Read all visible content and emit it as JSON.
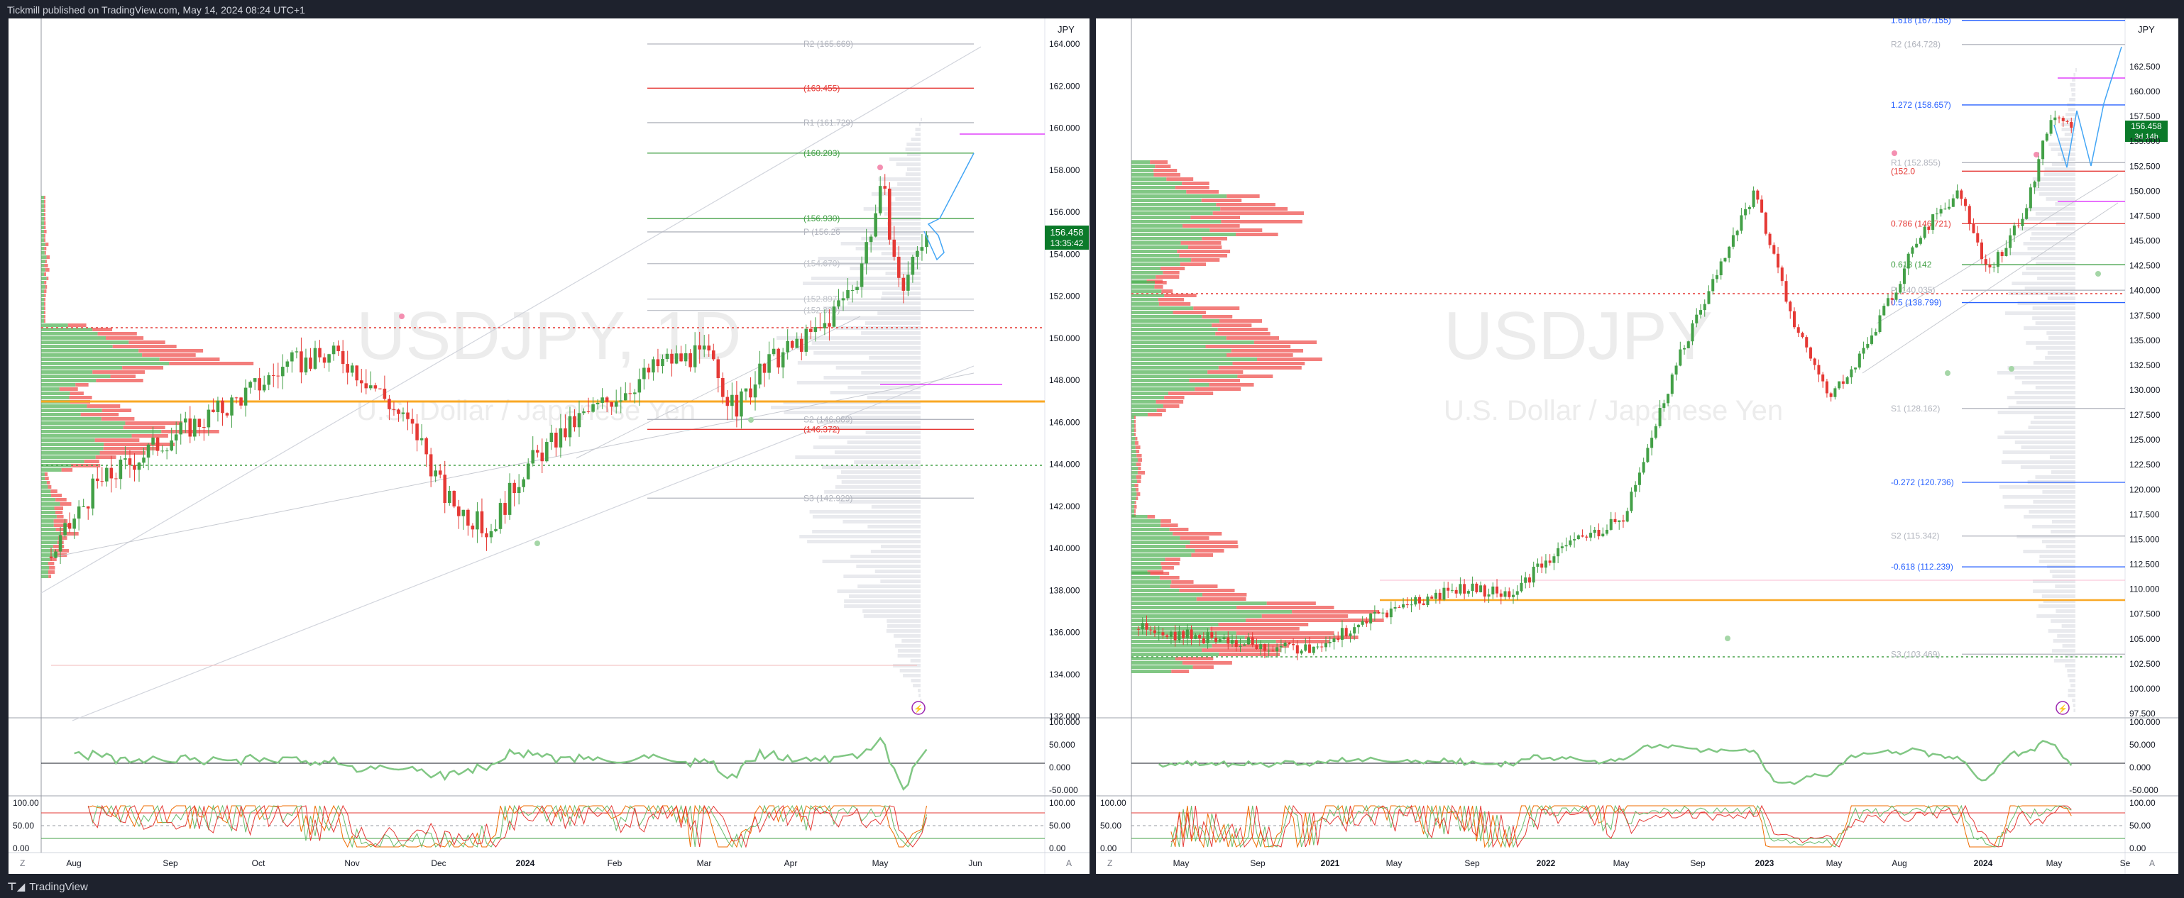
{
  "header": {
    "publisher_line": "Tickmill published on TradingView.com, May 14, 2024 08:24 UTC+1"
  },
  "footer": {
    "brand": "TradingView",
    "logo_icon": "tradingview-logo-icon"
  },
  "colors": {
    "up": "#43a047",
    "down": "#e53935",
    "price_badge": "#089981",
    "fib_blue": "#2962ff",
    "pivot_gray": "#9598a1",
    "magenta": "#e040fb",
    "gold": "#f9a825"
  },
  "left_chart": {
    "symbol_watermark": "USDJPY, 1D",
    "name_watermark": "U.S. Dollar / Japanese Yen",
    "currency": "JPY",
    "price_axis": [
      "164.000",
      "162.000",
      "160.000",
      "158.000",
      "156.000",
      "154.000",
      "152.000",
      "150.000",
      "148.000",
      "146.000",
      "144.000",
      "142.000",
      "140.000",
      "138.000",
      "136.000",
      "134.000",
      "132.000"
    ],
    "price_badge": {
      "price": "156.458",
      "countdown": "13:35:42"
    },
    "time_axis": [
      "Aug",
      "Sep",
      "Oct",
      "Nov",
      "Dec",
      "2024",
      "Feb",
      "Mar",
      "Apr",
      "May",
      "Jun"
    ],
    "levels": [
      {
        "label": "R2 (165.669)",
        "value": 165.669,
        "color": "#b2b5be"
      },
      {
        "label": "(163.455)",
        "value": 163.455,
        "color": "#e53935"
      },
      {
        "label": "R1 (161.729)",
        "value": 161.729,
        "color": "#b2b5be"
      },
      {
        "label": "(160.203)",
        "value": 160.203,
        "color": "#43a047"
      },
      {
        "label": "(156.930)",
        "value": 156.93,
        "color": "#43a047"
      },
      {
        "label": "P (156.26",
        "value": 156.26,
        "color": "#b2b5be"
      },
      {
        "label": "(154.670)",
        "value": 154.67,
        "color": "#c0c3ca"
      },
      {
        "label": "(152.897)",
        "value": 152.897,
        "color": "#c0c3ca"
      },
      {
        "label": "(152.329)",
        "value": 152.329,
        "color": "#c0c3ca"
      },
      {
        "label": "S2 (146.869)",
        "value": 146.869,
        "color": "#b2b5be"
      },
      {
        "label": "(146.372)",
        "value": 146.372,
        "color": "#e53935"
      },
      {
        "label": "S3 (142.929)",
        "value": 142.929,
        "color": "#b2b5be"
      }
    ],
    "rsi_axis": [
      "100.000",
      "50.000",
      "0.000",
      "-50.000"
    ],
    "stoch_axis": [
      "100.00",
      "50.00",
      "0.00"
    ]
  },
  "right_chart": {
    "symbol_watermark": "USDJPY",
    "name_watermark": "U.S. Dollar / Japanese Yen",
    "currency": "JPY",
    "price_axis": [
      "162.500",
      "160.000",
      "157.500",
      "155.000",
      "152.500",
      "150.000",
      "147.500",
      "145.000",
      "142.500",
      "140.000",
      "137.500",
      "135.000",
      "132.500",
      "130.000",
      "127.500",
      "125.000",
      "122.500",
      "120.000",
      "117.500",
      "115.000",
      "112.500",
      "110.000",
      "107.500",
      "105.000",
      "102.500",
      "100.000",
      "97.500"
    ],
    "price_badge": {
      "price": "156.458",
      "countdown": "3d 14h"
    },
    "time_axis": [
      "May",
      "Sep",
      "2021",
      "May",
      "Sep",
      "2022",
      "May",
      "Sep",
      "2023",
      "May",
      "Aug",
      "2024",
      "May",
      "Se"
    ],
    "levels": [
      {
        "label": "1.618 (167.155)",
        "value": 167.155,
        "color": "#2962ff"
      },
      {
        "label": "R2 (164.728)",
        "value": 164.728,
        "color": "#b2b5be"
      },
      {
        "label": "1.272 (158.657)",
        "value": 158.657,
        "color": "#2962ff"
      },
      {
        "label": "R1 (152.855)",
        "value": 152.855,
        "color": "#b2b5be"
      },
      {
        "label": "(152.0",
        "value": 152.0,
        "color": "#e53935"
      },
      {
        "label": "0.786 (146.721)",
        "value": 146.721,
        "color": "#e53935"
      },
      {
        "label": "0.618 (142",
        "value": 142.6,
        "color": "#43a047"
      },
      {
        "label": "P (140.035)",
        "value": 140.035,
        "color": "#b2b5be"
      },
      {
        "label": "0.5 (138.799)",
        "value": 138.799,
        "color": "#2962ff"
      },
      {
        "label": "S1 (128.162)",
        "value": 128.162,
        "color": "#b2b5be"
      },
      {
        "label": "-0.272 (120.736)",
        "value": 120.736,
        "color": "#2962ff"
      },
      {
        "label": "S2 (115.342)",
        "value": 115.342,
        "color": "#b2b5be"
      },
      {
        "label": "-0.618 (112.239)",
        "value": 112.239,
        "color": "#2962ff"
      },
      {
        "label": "S3 (103.469)",
        "value": 103.469,
        "color": "#b2b5be"
      }
    ],
    "rsi_axis": [
      "100.000",
      "50.000",
      "0.000",
      "-50.000"
    ],
    "stoch_axis": [
      "100.00",
      "50.00",
      "0.00"
    ]
  },
  "toolbar": {
    "log_toggle": "Z",
    "auto_toggle": "A"
  }
}
